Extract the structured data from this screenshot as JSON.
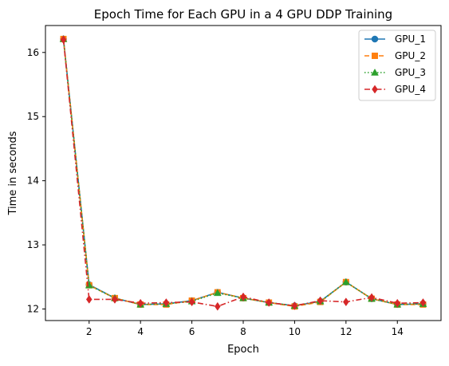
{
  "chart_data": {
    "type": "line",
    "title": "Epoch Time for Each GPU in a 4 GPU DDP Training",
    "xlabel": "Epoch",
    "ylabel": "Time in seconds",
    "x": [
      1,
      2,
      3,
      4,
      5,
      6,
      7,
      8,
      9,
      10,
      11,
      12,
      13,
      14,
      15
    ],
    "xlim": [
      0.3,
      15.7
    ],
    "ylim": [
      11.82,
      16.42
    ],
    "xticks": [
      "2",
      "4",
      "6",
      "8",
      "10",
      "12",
      "14"
    ],
    "yticks": [
      "12",
      "13",
      "14",
      "15",
      "16"
    ],
    "grid": false,
    "legend_position": "top-right",
    "series": [
      {
        "name": "GPU_1",
        "color": "#1f77b4",
        "marker": "circle",
        "linestyle": "solid",
        "values": [
          16.21,
          12.38,
          12.17,
          12.07,
          12.08,
          12.13,
          12.26,
          12.17,
          12.1,
          12.05,
          12.12,
          12.42,
          12.16,
          12.07,
          12.08
        ]
      },
      {
        "name": "GPU_2",
        "color": "#ff7f0e",
        "marker": "square",
        "linestyle": "dashed",
        "values": [
          16.21,
          12.37,
          12.17,
          12.07,
          12.07,
          12.13,
          12.26,
          12.17,
          12.1,
          12.04,
          12.11,
          12.42,
          12.16,
          12.07,
          12.07
        ]
      },
      {
        "name": "GPU_3",
        "color": "#2ca02c",
        "marker": "triangle",
        "linestyle": "dotted",
        "values": [
          16.21,
          12.37,
          12.17,
          12.07,
          12.08,
          12.12,
          12.25,
          12.17,
          12.1,
          12.05,
          12.12,
          12.42,
          12.16,
          12.07,
          12.08
        ]
      },
      {
        "name": "GPU_4",
        "color": "#d62728",
        "marker": "diamond",
        "linestyle": "dashdot",
        "values": [
          16.2,
          12.15,
          12.15,
          12.09,
          12.1,
          12.11,
          12.04,
          12.19,
          12.1,
          12.05,
          12.13,
          12.11,
          12.18,
          12.09,
          12.1
        ]
      }
    ]
  }
}
